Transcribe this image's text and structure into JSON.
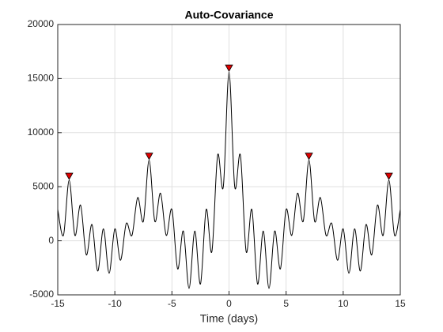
{
  "chart_data": {
    "type": "line",
    "title": "Auto-Covariance",
    "x_label": "Time (days)",
    "x": [
      -15,
      -14.5,
      -14,
      -13.5,
      -13,
      -12.5,
      -12,
      -11.5,
      -11,
      -10.5,
      -10,
      -9.5,
      -9,
      -8.5,
      -8,
      -7.5,
      -7,
      -6.5,
      -6,
      -5.5,
      -5,
      -4.5,
      -4,
      -3.5,
      -3,
      -2.5,
      -2,
      -1.5,
      -1,
      -0.5,
      0,
      0.5,
      1,
      1.5,
      2,
      2.5,
      3,
      3.5,
      4,
      4.5,
      5,
      5.5,
      6,
      6.5,
      7,
      7.5,
      8,
      8.5,
      9,
      9.5,
      10,
      10.5,
      11,
      11.5,
      12,
      12.5,
      13,
      13.5,
      14,
      14.5,
      15
    ],
    "values": [
      2900,
      500,
      5600,
      500,
      3300,
      -1300,
      1500,
      -2800,
      1100,
      -3000,
      1100,
      -1800,
      1600,
      500,
      4000,
      1800,
      7450,
      1800,
      4400,
      500,
      2900,
      -2600,
      900,
      -4400,
      900,
      -4000,
      2900,
      -1000,
      7900,
      5000,
      15600,
      5000,
      7900,
      -1000,
      2900,
      -4000,
      900,
      -4400,
      900,
      -2600,
      2900,
      500,
      4400,
      1800,
      7450,
      1800,
      4000,
      500,
      1600,
      -1800,
      1100,
      -3000,
      1100,
      -2800,
      1500,
      -1300,
      3300,
      500,
      5600,
      500,
      2900
    ],
    "color": "#000000",
    "peaks": {
      "x": [
        -14,
        -7,
        0,
        7,
        14
      ],
      "values": [
        5600,
        7450,
        15600,
        7450,
        5600
      ],
      "color": "#e00000"
    },
    "xlim": [
      -15,
      15
    ],
    "xticks": [
      -15,
      -10,
      -5,
      0,
      5,
      10,
      15
    ],
    "ylim": [
      -5000,
      20000
    ],
    "yticks": [
      -5000,
      0,
      5000,
      10000,
      15000,
      20000
    ],
    "grid": true
  }
}
